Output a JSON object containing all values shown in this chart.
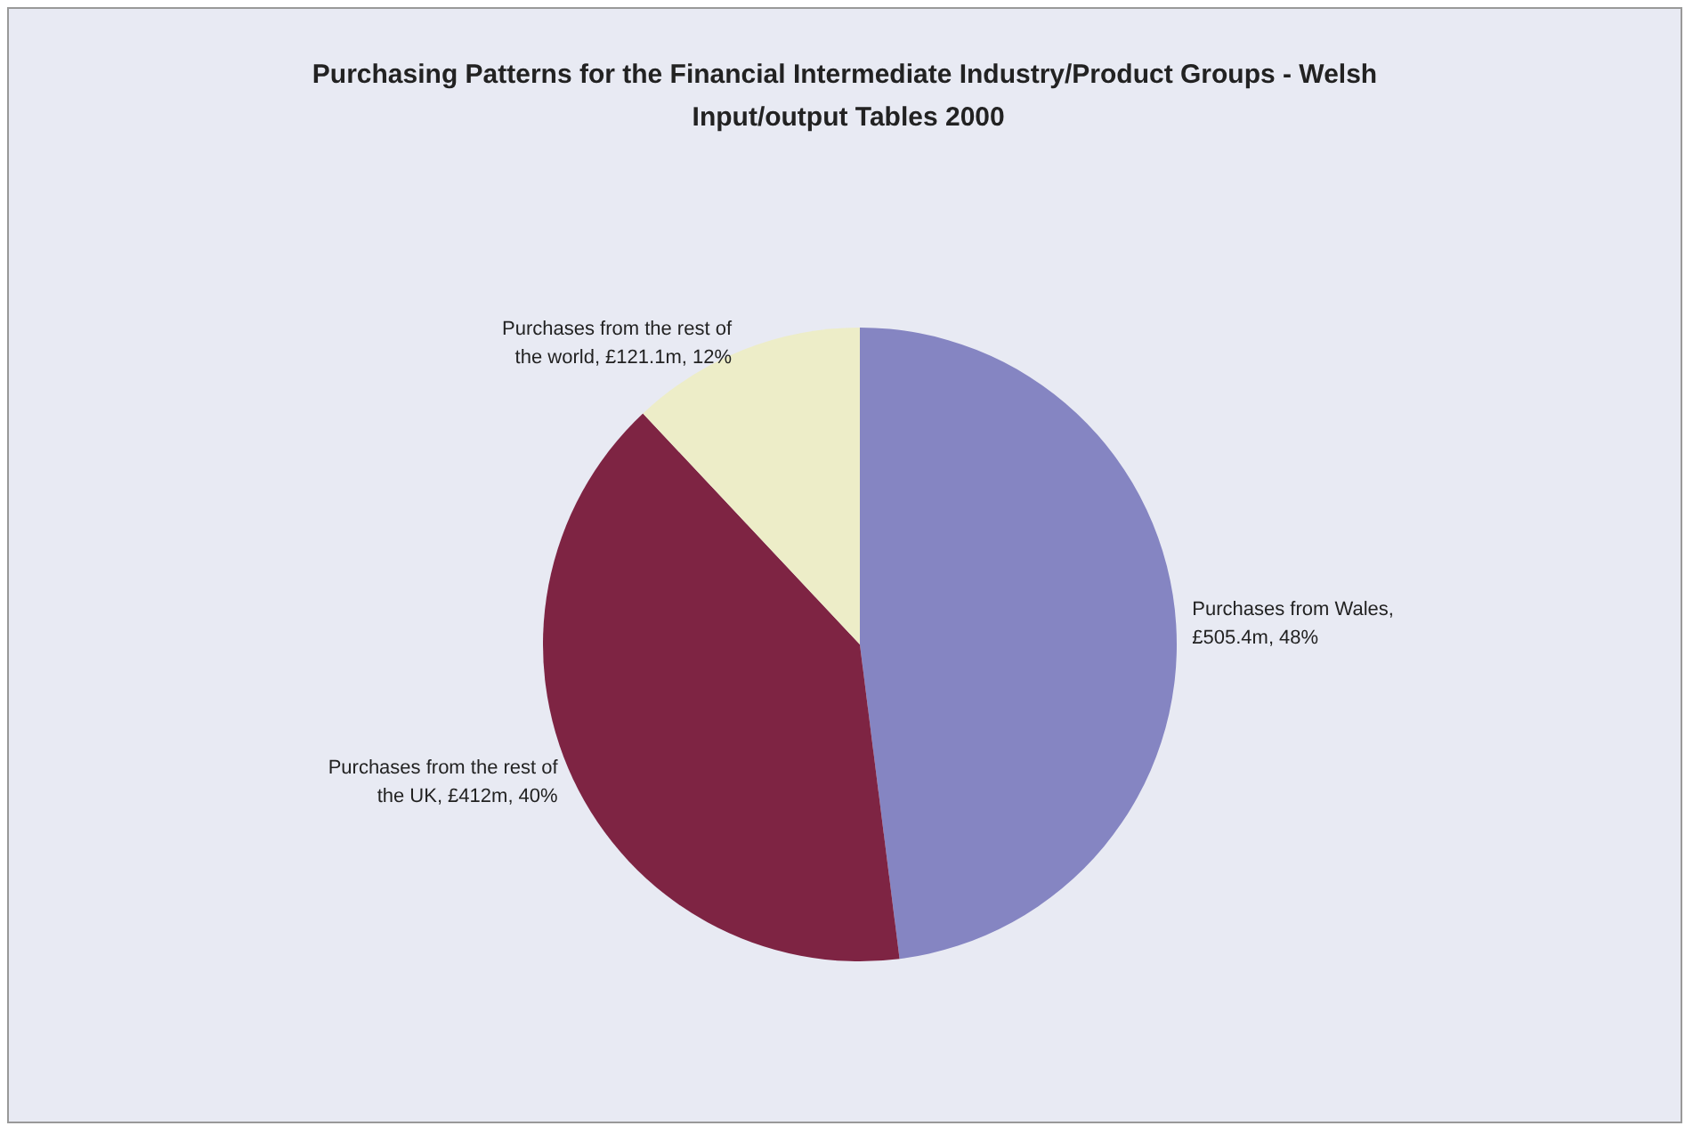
{
  "chart_data": {
    "type": "pie",
    "title": "Purchasing Patterns for the Financial Intermediate Industry/Product Groups - Welsh Input/output Tables 2000",
    "categories": [
      "Purchases from Wales",
      "Purchases from the rest of the UK",
      "Purchases from the rest of the world"
    ],
    "values": [
      48,
      40,
      12
    ],
    "value_labels": [
      ", £505.4m, 48%",
      ", £412m, 40%",
      ", £121.1m, 12%"
    ],
    "colors": [
      "#8585c2",
      "#7e2443",
      "#ededc8"
    ],
    "legend": false
  }
}
